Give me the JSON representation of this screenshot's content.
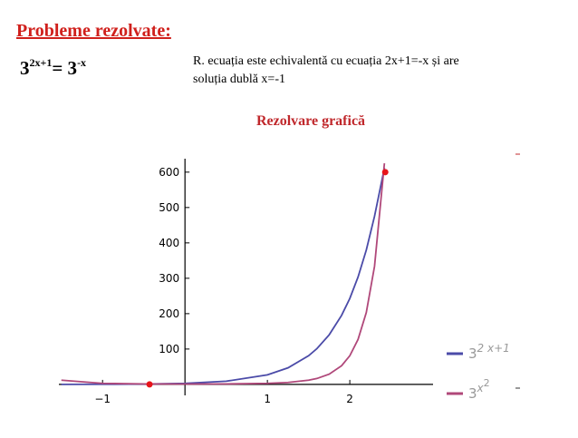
{
  "header": {
    "title": "Probleme rezolvate:"
  },
  "equation": {
    "base1": "3",
    "exp1": "2x+1",
    "rest": "= 3",
    "exp2": "-x"
  },
  "explanation": [
    "R. ecuația este echivalentă cu ecuația 2x+1=-x și are",
    "soluția dublă x=-1"
  ],
  "chart_data": {
    "type": "line",
    "title": "Rezolvare grafică",
    "x": [
      -1.5,
      -1,
      -0.5,
      0,
      0.5,
      1,
      1.25,
      1.5,
      1.6,
      1.75,
      1.9,
      2,
      2.1,
      2.2,
      2.3,
      2.42
    ],
    "series": [
      {
        "label_base": "3",
        "label_exp": "2 x+1",
        "color": "#4b4ba8",
        "values": [
          0.111,
          0.333,
          1,
          3,
          9,
          27,
          46.8,
          81,
          100.9,
          140.3,
          195,
          243,
          303.6,
          379.8,
          475.3,
          612
        ]
      },
      {
        "label_base": "3",
        "label_exp": "x",
        "label_exp2": "2",
        "color": "#b0487a",
        "values": [
          11.85,
          3,
          1.316,
          1,
          1.316,
          3,
          5.57,
          11.85,
          16.6,
          28.97,
          52.8,
          81,
          127.1,
          203.2,
          334,
          625
        ]
      }
    ],
    "points": {
      "color": "#e8141a",
      "x": [
        -0.43,
        2.43
      ],
      "values": [
        0,
        600
      ]
    },
    "xlim": [
      -1.53,
      3.01
    ],
    "ylim": [
      -31,
      638
    ],
    "xticks": [
      {
        "value": -1,
        "label": "−1"
      },
      1,
      2
    ],
    "yticks": [
      100,
      200,
      300,
      400,
      500,
      600
    ]
  }
}
